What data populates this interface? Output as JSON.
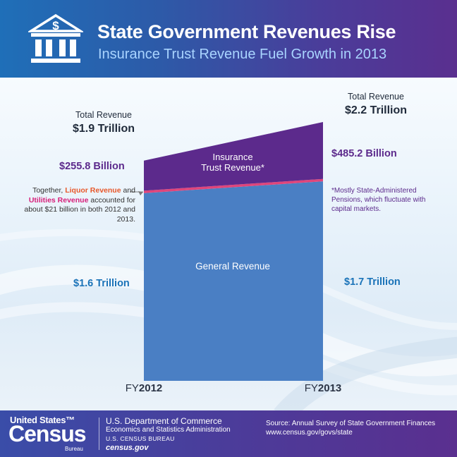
{
  "header": {
    "title": "State Government Revenues Rise",
    "subtitle": "Insurance Trust Revenue Fuel Growth in 2013",
    "logo_icon": "government-building-icon"
  },
  "chart_data": {
    "type": "area",
    "categories": [
      "FY2012",
      "FY2013"
    ],
    "x_labels": [
      {
        "prefix": "FY",
        "year": "2012"
      },
      {
        "prefix": "FY",
        "year": "2013"
      }
    ],
    "series": [
      {
        "name": "General Revenue",
        "values": [
          1.6,
          1.7
        ],
        "value_labels": [
          "$1.6 Trillion",
          "$1.7 Trillion"
        ],
        "color": "#4a7fc4"
      },
      {
        "name": "Liquor Revenue and Utilities Revenue",
        "values": [
          0.021,
          0.021
        ],
        "color": "#e0457b"
      },
      {
        "name": "Insurance Trust Revenue*",
        "values": [
          0.2558,
          0.4852
        ],
        "value_labels": [
          "$255.8 Billion",
          "$485.2 Billion"
        ],
        "color": "#5c2a8c"
      }
    ],
    "totals": {
      "caption": "Total Revenue",
      "values": [
        1.9,
        2.2
      ],
      "labels": [
        "$1.9 Trillion",
        "$2.2 Trillion"
      ]
    },
    "inside_labels": {
      "general": "General Revenue",
      "insurance_line1": "Insurance",
      "insurance_line2": "Trust Revenue*"
    },
    "annotation": {
      "prefix": "Together, ",
      "liquor": "Liquor Revenue",
      "and": " and",
      "utilities": "Utilities Revenue",
      "rest": " accounted for about $21 billion in both 2012 and 2013."
    },
    "footnote": "*Mostly State-Administered Pensions, which fluctuate with capital markets.",
    "colors": {
      "liquor": "#e8582b",
      "utilities": "#d7207a",
      "insurance": "#5c2a8c",
      "general": "#1a73b8"
    },
    "unit": "Trillion $"
  },
  "footer": {
    "brand_top": "United States™",
    "brand_main": "Census",
    "brand_sub": "Bureau",
    "dept_line1": "U.S. Department of Commerce",
    "dept_line2": "Economics and Statistics Administration",
    "dept_line3": "U.S. CENSUS BUREAU",
    "dept_line4": "census.gov",
    "source_line1": "Source: Annual Survey of State Government Finances",
    "source_line2": "www.census.gov/govs/state"
  }
}
